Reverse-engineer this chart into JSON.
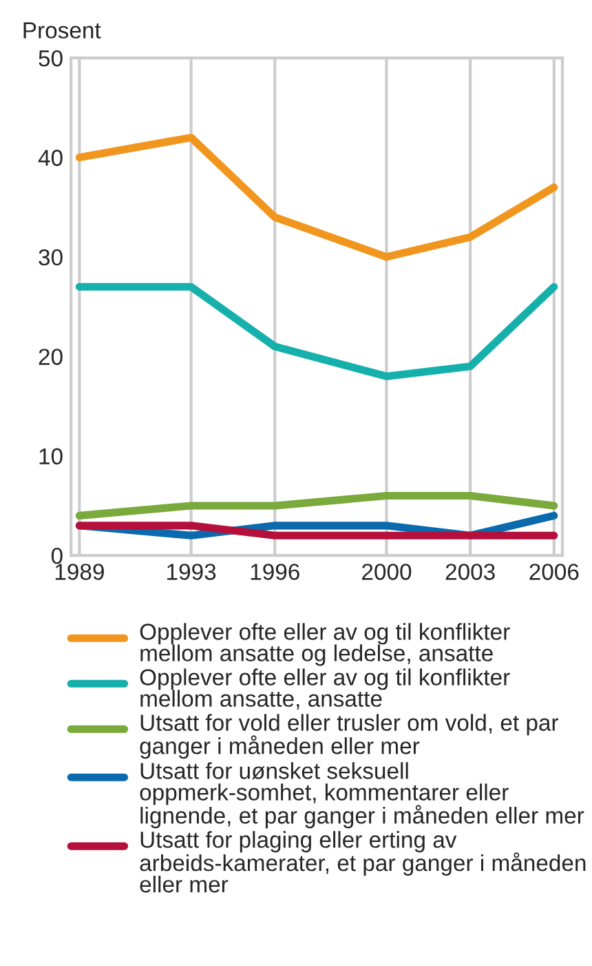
{
  "chart_data": {
    "type": "line",
    "ylabel": "Prosent",
    "x": [
      1989,
      1993,
      1996,
      2000,
      2003,
      2006
    ],
    "xlim": [
      1988.7,
      2006.3
    ],
    "xticks": [
      1989,
      1993,
      1996,
      2000,
      2003,
      2006
    ],
    "ylim": [
      0,
      50
    ],
    "yticks": [
      0,
      10,
      20,
      30,
      40,
      50
    ],
    "grid": "x",
    "legend": "bottom",
    "series": [
      {
        "name": "Opplever ofte eller av og til konflikter mellom ansatte og ledelse, ansatte",
        "color": "#f0961e",
        "values": [
          40,
          42,
          34,
          30,
          32,
          37
        ]
      },
      {
        "name": "Opplever ofte eller av og til konflikter mellom ansatte, ansatte",
        "color": "#16b0ac",
        "values": [
          27,
          27,
          21,
          18,
          19,
          27
        ]
      },
      {
        "name": "Utsatt for vold eller trusler om vold, et par ganger i måneden eller mer",
        "color": "#7aa93c",
        "values": [
          4,
          5,
          5,
          6,
          6,
          5
        ]
      },
      {
        "name": "Utsatt for uønsket seksuell oppmerk-somhet, kommentarer eller lignende, et par ganger i måneden eller mer",
        "color": "#0b6aad",
        "values": [
          3,
          2,
          3,
          3,
          2,
          4
        ]
      },
      {
        "name": "Utsatt for plaging eller erting av arbeids-kamerater, et par ganger i måneden eller mer",
        "color": "#b5103c",
        "values": [
          3,
          3,
          2,
          2,
          2,
          2
        ]
      }
    ]
  }
}
